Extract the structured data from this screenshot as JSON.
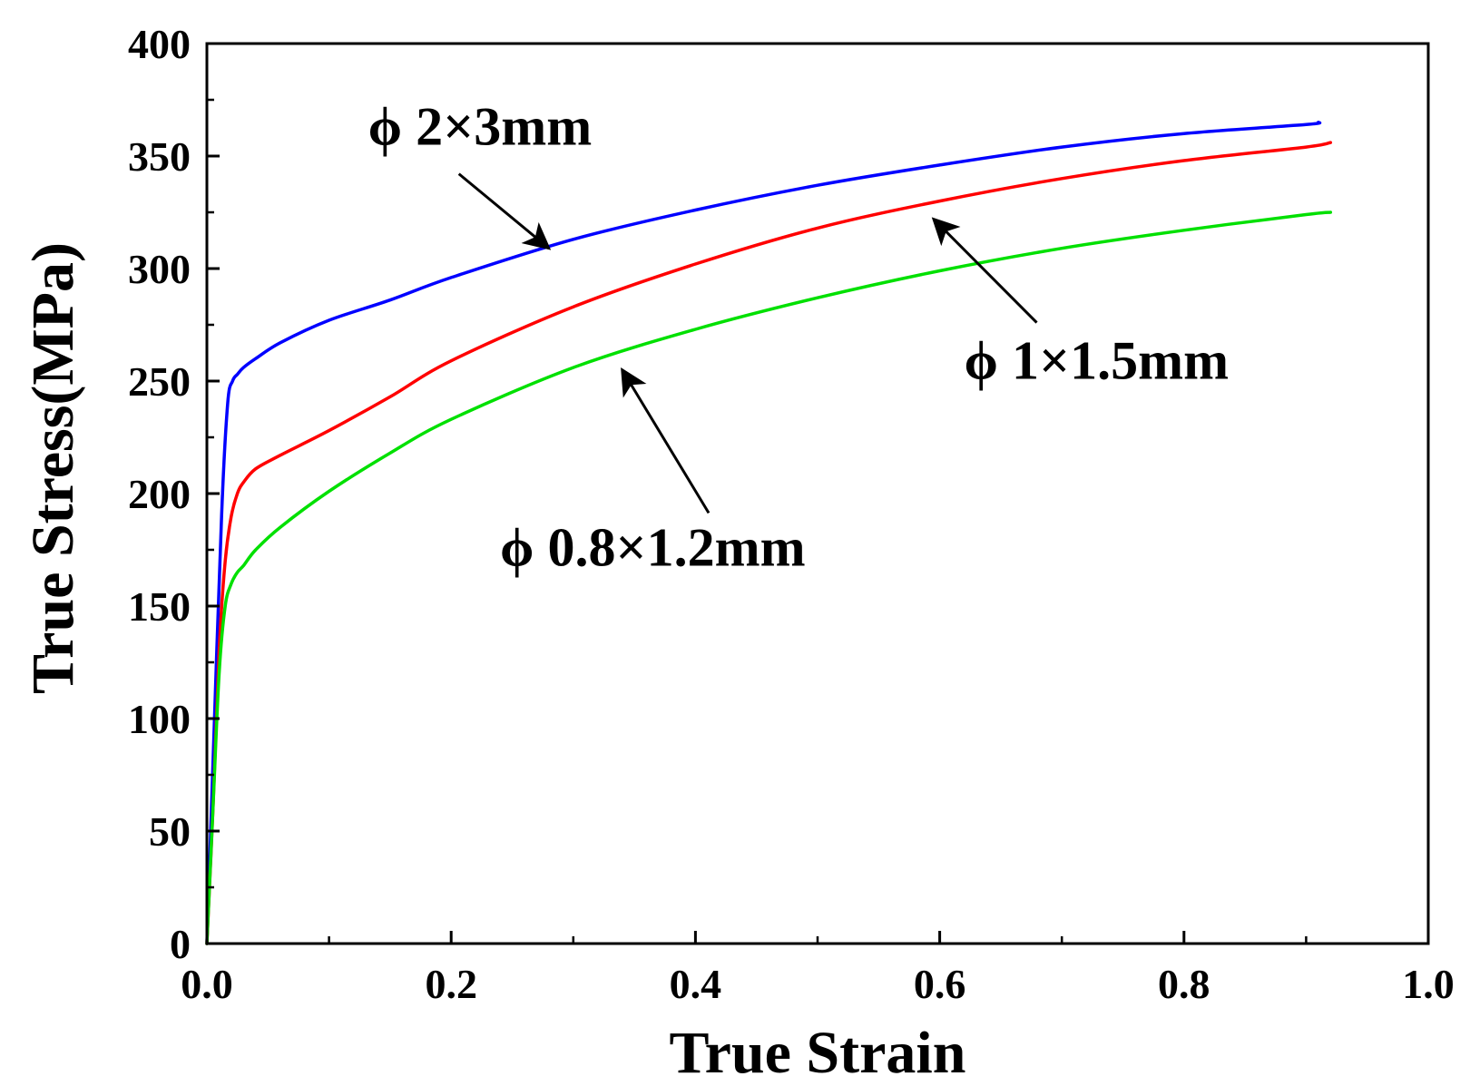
{
  "chart_data": {
    "type": "line",
    "title": "",
    "xlabel": "True Strain",
    "ylabel": "True Stress(MPa)",
    "xlim": [
      0.0,
      1.0
    ],
    "ylim": [
      0,
      400
    ],
    "xticks": [
      0.0,
      0.2,
      0.4,
      0.6,
      0.8,
      1.0
    ],
    "xtick_labels": [
      "0.0",
      "0.2",
      "0.4",
      "0.6",
      "0.8",
      "1.0"
    ],
    "yticks": [
      0,
      50,
      100,
      150,
      200,
      250,
      300,
      350,
      400
    ],
    "ytick_labels": [
      "0",
      "50",
      "100",
      "150",
      "200",
      "250",
      "300",
      "350",
      "400"
    ],
    "grid": false,
    "legend": "none",
    "series": [
      {
        "name": "ϕ 2×3mm",
        "color": "#0000ff",
        "x": [
          0.0,
          0.005,
          0.012,
          0.017,
          0.021,
          0.025,
          0.03,
          0.04,
          0.06,
          0.1,
          0.15,
          0.2,
          0.3,
          0.4,
          0.5,
          0.6,
          0.7,
          0.8,
          0.9,
          0.91
        ],
        "y": [
          0,
          80,
          190,
          240,
          250,
          253,
          256,
          260,
          267,
          277,
          286,
          296,
          313,
          326,
          337,
          346,
          354,
          360,
          364,
          365
        ]
      },
      {
        "name": "ϕ 1×1.5mm",
        "color": "#ff0000",
        "x": [
          0.0,
          0.005,
          0.01,
          0.015,
          0.02,
          0.025,
          0.03,
          0.04,
          0.06,
          0.1,
          0.15,
          0.2,
          0.3,
          0.4,
          0.5,
          0.6,
          0.7,
          0.8,
          0.9,
          0.92
        ],
        "y": [
          0,
          60,
          130,
          170,
          190,
          200,
          205,
          211,
          217,
          228,
          243,
          259,
          283,
          302,
          318,
          330,
          340,
          348,
          354,
          356
        ]
      },
      {
        "name": "ϕ 0.8×1.2mm",
        "color": "#00e000",
        "x": [
          0.0,
          0.005,
          0.01,
          0.015,
          0.02,
          0.025,
          0.03,
          0.04,
          0.06,
          0.1,
          0.15,
          0.2,
          0.3,
          0.4,
          0.5,
          0.6,
          0.7,
          0.8,
          0.9,
          0.92
        ],
        "y": [
          0,
          60,
          120,
          150,
          160,
          165,
          168,
          175,
          185,
          201,
          218,
          233,
          256,
          273,
          287,
          299,
          309,
          317,
          324,
          325
        ]
      }
    ],
    "annotations": [
      {
        "text": "ϕ 2×3mm",
        "series": 0,
        "label_x": 0.132,
        "label_y": 355,
        "arrow_to": [
          0.28,
          309
        ]
      },
      {
        "text": "ϕ 1×1.5mm",
        "series": 1,
        "label_x": 0.62,
        "label_y": 251,
        "arrow_to": [
          0.595,
          322
        ]
      },
      {
        "text": "ϕ 0.8×1.2mm",
        "series": 2,
        "label_x": 0.24,
        "label_y": 168,
        "arrow_to": [
          0.34,
          255
        ]
      }
    ]
  }
}
